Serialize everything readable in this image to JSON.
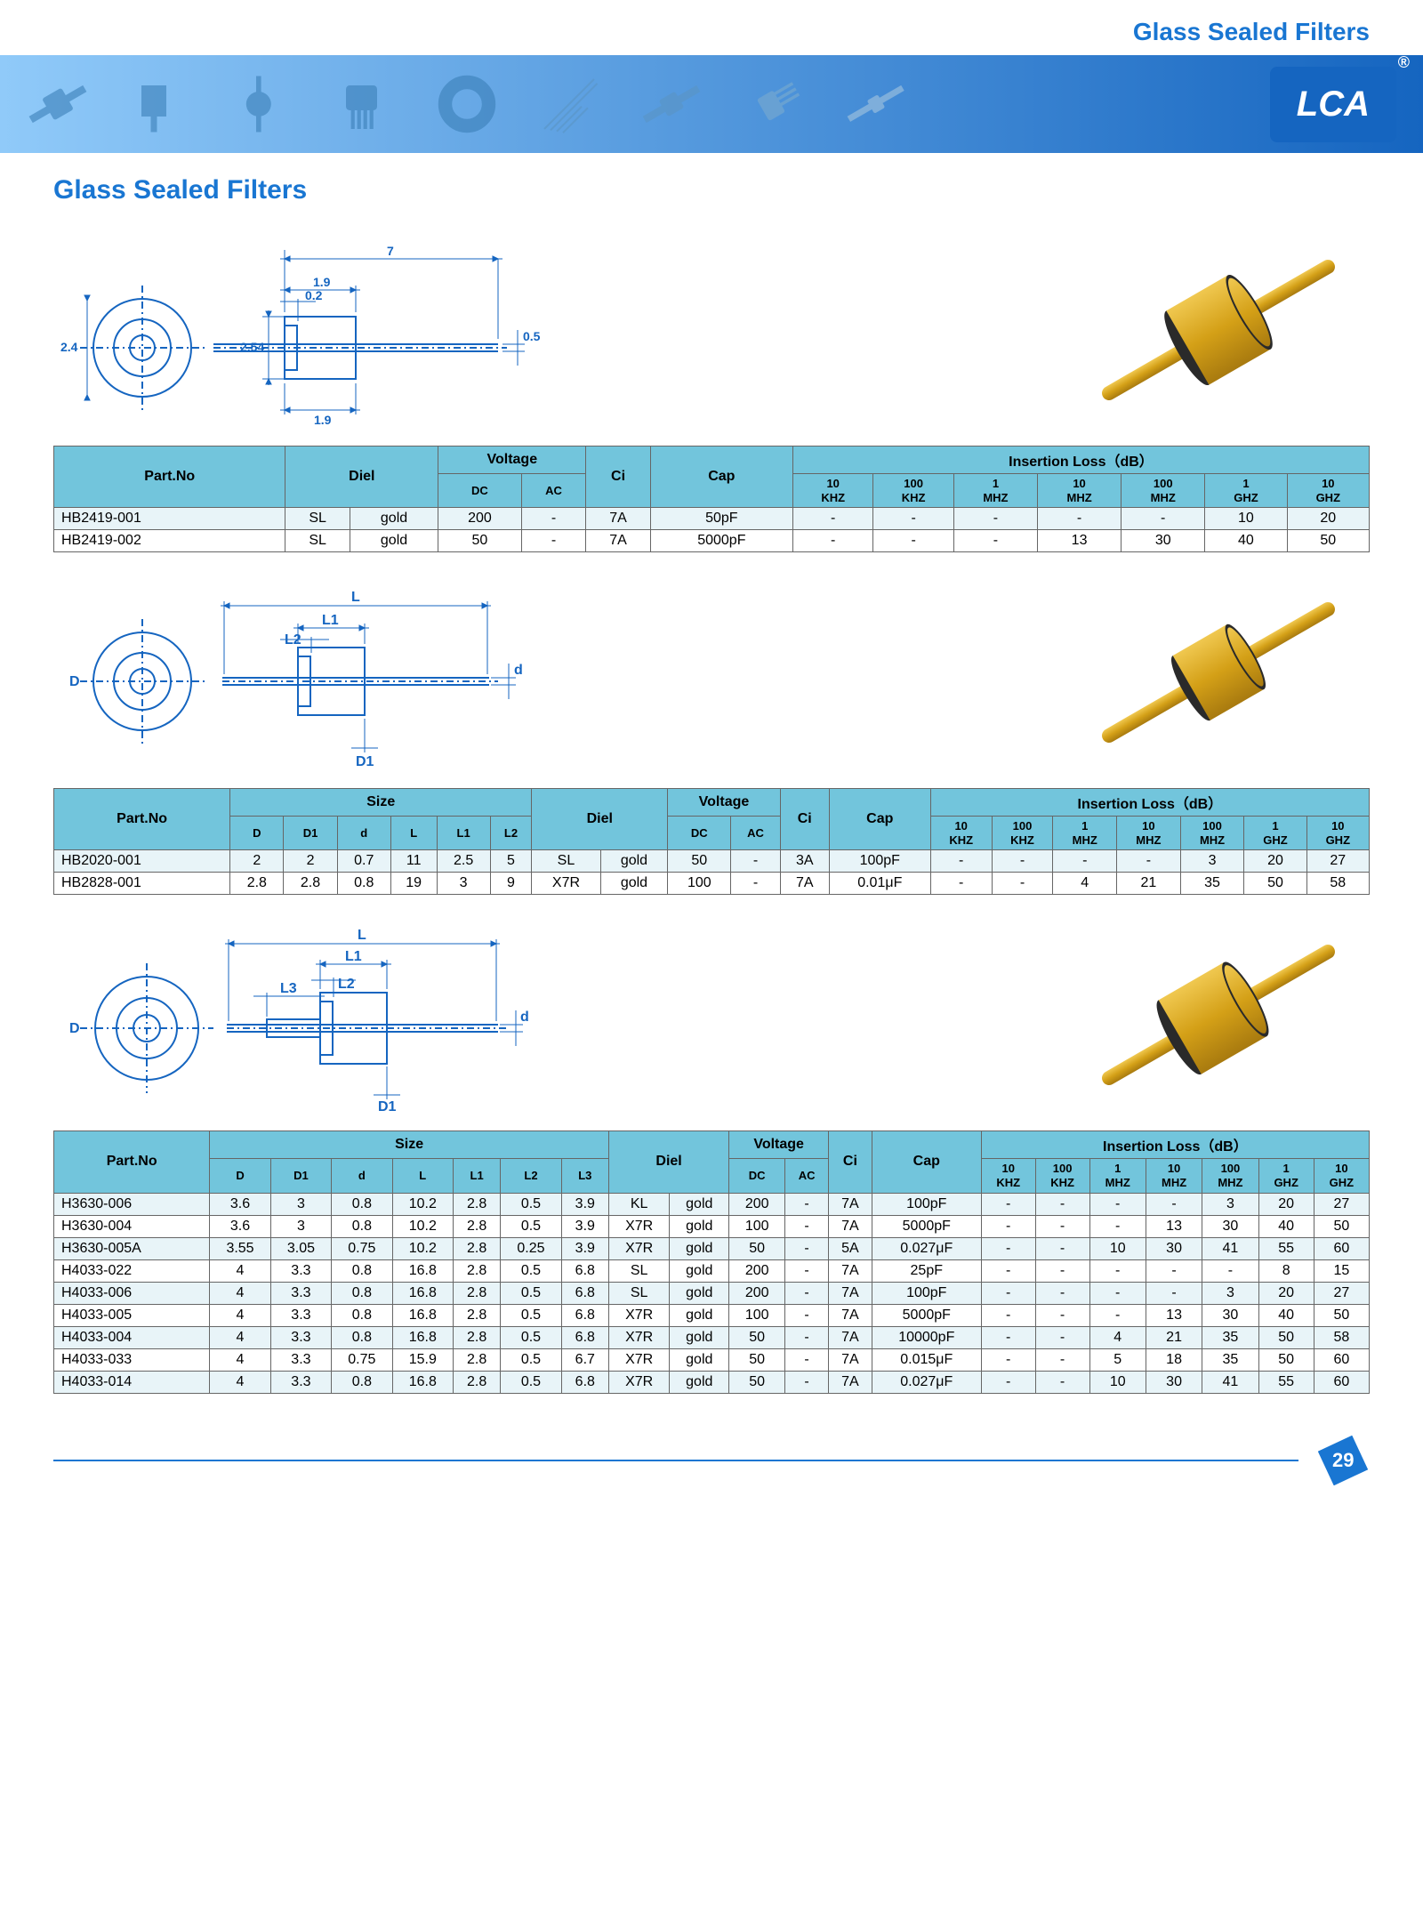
{
  "header_title": "Glass Sealed Filters",
  "section_title": "Glass Sealed Filters",
  "logo_text": "LCA",
  "page_number": "29",
  "colors": {
    "brand_blue": "#1976d2",
    "table_header": "#72c5dc",
    "alt_row": "#e8f4f8",
    "filter_gold": "#d4a017",
    "filter_gold_light": "#f0c850",
    "filter_dark": "#2a2a2a",
    "drawing_blue": "#1565c0"
  },
  "drawing1_dims": {
    "total_len": "7",
    "body_len": "1.9",
    "inner": "0.2",
    "body_dia": "2.54",
    "lead_dia": "0.5",
    "ring_dia": "2.4",
    "ext": "1.9"
  },
  "drawing2_dims": {
    "D": "D",
    "D1": "D1",
    "d": "d",
    "L": "L",
    "L1": "L1",
    "L2": "L2"
  },
  "drawing3_dims": {
    "D": "D",
    "D1": "D1",
    "d": "d",
    "L": "L",
    "L1": "L1",
    "L2": "L2",
    "L3": "L3"
  },
  "t1_headers": {
    "partno": "Part.No",
    "diel": "Diel",
    "voltage": "Voltage",
    "dc": "DC",
    "ac": "AC",
    "ci": "Ci",
    "cap": "Cap",
    "iloss": "Insertion Loss（dB）",
    "freqs": [
      "10\nKHZ",
      "100\nKHZ",
      "1\nMHZ",
      "10\nMHZ",
      "100\nMHZ",
      "1\nGHZ",
      "10\nGHZ"
    ]
  },
  "t1_rows": [
    [
      "HB2419-001",
      "SL",
      "gold",
      "200",
      "-",
      "7A",
      "50pF",
      "-",
      "-",
      "-",
      "-",
      "-",
      "10",
      "20"
    ],
    [
      "HB2419-002",
      "SL",
      "gold",
      "50",
      "-",
      "7A",
      "5000pF",
      "-",
      "-",
      "-",
      "13",
      "30",
      "40",
      "50"
    ]
  ],
  "t2_headers": {
    "partno": "Part.No",
    "size": "Size",
    "D": "D",
    "D1": "D1",
    "d": "d",
    "L": "L",
    "L1": "L1",
    "L2": "L2",
    "diel": "Diel",
    "voltage": "Voltage",
    "dc": "DC",
    "ac": "AC",
    "ci": "Ci",
    "cap": "Cap",
    "iloss": "Insertion Loss（dB）",
    "freqs": [
      "10\nKHZ",
      "100\nKHZ",
      "1\nMHZ",
      "10\nMHZ",
      "100\nMHZ",
      "1\nGHZ",
      "10\nGHZ"
    ]
  },
  "t2_rows": [
    [
      "HB2020-001",
      "2",
      "2",
      "0.7",
      "11",
      "2.5",
      "5",
      "SL",
      "gold",
      "50",
      "-",
      "3A",
      "100pF",
      "-",
      "-",
      "-",
      "-",
      "3",
      "20",
      "27"
    ],
    [
      "HB2828-001",
      "2.8",
      "2.8",
      "0.8",
      "19",
      "3",
      "9",
      "X7R",
      "gold",
      "100",
      "-",
      "7A",
      "0.01μF",
      "-",
      "-",
      "4",
      "21",
      "35",
      "50",
      "58"
    ]
  ],
  "t3_headers": {
    "partno": "Part.No",
    "size": "Size",
    "D": "D",
    "D1": "D1",
    "d": "d",
    "L": "L",
    "L1": "L1",
    "L2": "L2",
    "L3": "L3",
    "diel": "Diel",
    "voltage": "Voltage",
    "dc": "DC",
    "ac": "AC",
    "ci": "Ci",
    "cap": "Cap",
    "iloss": "Insertion Loss（dB）",
    "freqs": [
      "10\nKHZ",
      "100\nKHZ",
      "1\nMHZ",
      "10\nMHZ",
      "100\nMHZ",
      "1\nGHZ",
      "10\nGHZ"
    ]
  },
  "t3_rows": [
    [
      "H3630-006",
      "3.6",
      "3",
      "0.8",
      "10.2",
      "2.8",
      "0.5",
      "3.9",
      "KL",
      "gold",
      "200",
      "-",
      "7A",
      "100pF",
      "-",
      "-",
      "-",
      "-",
      "3",
      "20",
      "27"
    ],
    [
      "H3630-004",
      "3.6",
      "3",
      "0.8",
      "10.2",
      "2.8",
      "0.5",
      "3.9",
      "X7R",
      "gold",
      "100",
      "-",
      "7A",
      "5000pF",
      "-",
      "-",
      "-",
      "13",
      "30",
      "40",
      "50"
    ],
    [
      "H3630-005A",
      "3.55",
      "3.05",
      "0.75",
      "10.2",
      "2.8",
      "0.25",
      "3.9",
      "X7R",
      "gold",
      "50",
      "-",
      "5A",
      "0.027μF",
      "-",
      "-",
      "10",
      "30",
      "41",
      "55",
      "60"
    ],
    [
      "H4033-022",
      "4",
      "3.3",
      "0.8",
      "16.8",
      "2.8",
      "0.5",
      "6.8",
      "SL",
      "gold",
      "200",
      "-",
      "7A",
      "25pF",
      "-",
      "-",
      "-",
      "-",
      "-",
      "8",
      "15"
    ],
    [
      "H4033-006",
      "4",
      "3.3",
      "0.8",
      "16.8",
      "2.8",
      "0.5",
      "6.8",
      "SL",
      "gold",
      "200",
      "-",
      "7A",
      "100pF",
      "-",
      "-",
      "-",
      "-",
      "3",
      "20",
      "27"
    ],
    [
      "H4033-005",
      "4",
      "3.3",
      "0.8",
      "16.8",
      "2.8",
      "0.5",
      "6.8",
      "X7R",
      "gold",
      "100",
      "-",
      "7A",
      "5000pF",
      "-",
      "-",
      "-",
      "13",
      "30",
      "40",
      "50"
    ],
    [
      "H4033-004",
      "4",
      "3.3",
      "0.8",
      "16.8",
      "2.8",
      "0.5",
      "6.8",
      "X7R",
      "gold",
      "50",
      "-",
      "7A",
      "10000pF",
      "-",
      "-",
      "4",
      "21",
      "35",
      "50",
      "58"
    ],
    [
      "H4033-033",
      "4",
      "3.3",
      "0.75",
      "15.9",
      "2.8",
      "0.5",
      "6.7",
      "X7R",
      "gold",
      "50",
      "-",
      "7A",
      "0.015μF",
      "-",
      "-",
      "5",
      "18",
      "35",
      "50",
      "60"
    ],
    [
      "H4033-014",
      "4",
      "3.3",
      "0.8",
      "16.8",
      "2.8",
      "0.5",
      "6.8",
      "X7R",
      "gold",
      "50",
      "-",
      "7A",
      "0.027μF",
      "-",
      "-",
      "10",
      "30",
      "41",
      "55",
      "60"
    ]
  ]
}
